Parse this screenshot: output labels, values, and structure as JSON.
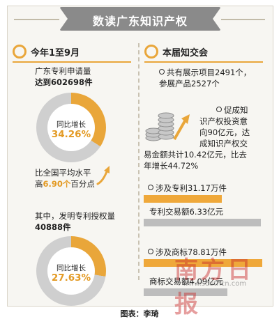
{
  "header": {
    "title": "数读广东知识产权"
  },
  "left": {
    "heading": "今年1至9月",
    "patent_apply_line1": "广东专利申请量",
    "patent_apply_line2": "达到602698件",
    "donut1": {
      "label": "同比增长",
      "value": "34.26%",
      "fraction": 0.3426
    },
    "national_line1": "比全国平均水平",
    "national_line2_prefix": "高",
    "national_line2_value": "6.90个",
    "national_line2_suffix": "百分点",
    "invention_line1": "其中，发明专利授权量",
    "invention_line2": "40888件",
    "donut2": {
      "label": "同比增长",
      "value": "27.63%",
      "fraction": 0.2763
    }
  },
  "right": {
    "heading": "本届知交会",
    "projects_line1": "共有展示项目2491个，",
    "projects_line2": "参展产品2527个",
    "deal_line1": "促成知",
    "deal_line2": "识产权投资意",
    "deal_line3": "向90亿元，达",
    "deal_line4": "成知识产权交",
    "deal_line5": "易金额共计10.42亿元，比去",
    "deal_line6": "年增长44.72%",
    "patent_label": "涉及专利31.17万件",
    "patent_trade_label": "专利交易额6.33亿元",
    "trademark_label": "涉及商标78.81万件",
    "trademark_trade_label": "商标交易额4.09亿元"
  },
  "footer": {
    "credit": "图表：李琦"
  },
  "watermark": {
    "text": "南方日报",
    "url": "www.southcn.com"
  },
  "colors": {
    "accent": "#e9a63a",
    "bar_gray": "#bdbdbd",
    "title_bg": "#8a8a8a"
  }
}
